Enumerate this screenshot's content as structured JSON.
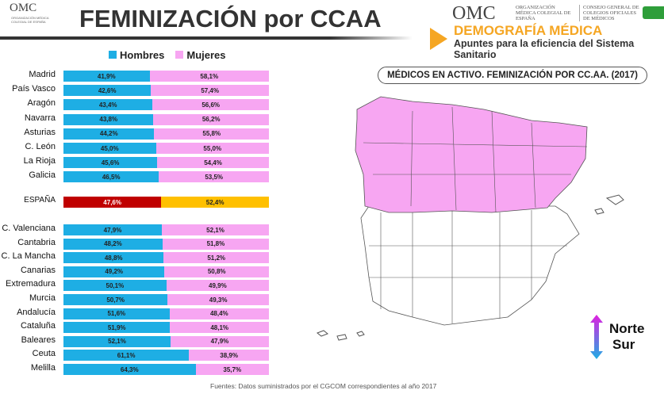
{
  "header": {
    "title": "FEMINIZACIÓN por CCAA",
    "omc": "OMC",
    "org": "ORGANIZACIÓN MÉDICA COLEGIAL DE ESPAÑA",
    "consejo": "CONSEJO GENERAL DE COLEGIOS OFICIALES DE MÉDICOS",
    "demografia": "DEMOGRAFÍA MÉDICA",
    "subtitle": "Apuntes para la eficiencia del Sistema Sanitario"
  },
  "map": {
    "title": "MÉDICOS EN ACTIVO. FEMINIZACIÓN POR CC.AA. (2017)",
    "norte": "Norte",
    "sur": "Sur"
  },
  "source": "Fuentes: Datos suministrados por el CGCOM correspondientes al año 2017",
  "colors": {
    "hombres": "#1eaee4",
    "mujeres": "#f7a6f2",
    "espana_h": "#c00000",
    "espana_m": "#ffc000"
  },
  "chart_data": {
    "type": "bar",
    "stacked": true,
    "orientation": "horizontal",
    "xlim": [
      0,
      100
    ],
    "legend": [
      "Hombres",
      "Mujeres"
    ],
    "legend_position": "top",
    "categories": [
      "Madrid",
      "País Vasco",
      "Aragón",
      "Navarra",
      "Asturias",
      "C. León",
      "La Rioja",
      "Galicia",
      "ESPAÑA",
      "C. Valenciana",
      "Cantabria",
      "C. La Mancha",
      "Canarias",
      "Extremadura",
      "Murcia",
      "Andalucía",
      "Cataluña",
      "Baleares",
      "Ceuta",
      "Melilla"
    ],
    "series": [
      {
        "name": "Hombres",
        "values": [
          41.9,
          42.6,
          43.4,
          43.8,
          44.2,
          45.0,
          45.6,
          46.5,
          47.6,
          47.9,
          48.2,
          48.8,
          49.2,
          50.1,
          50.7,
          51.6,
          51.9,
          52.1,
          61.1,
          64.3
        ]
      },
      {
        "name": "Mujeres",
        "values": [
          58.1,
          57.4,
          56.6,
          56.2,
          55.8,
          55.0,
          54.4,
          53.5,
          52.4,
          52.1,
          51.8,
          51.2,
          50.8,
          49.9,
          49.3,
          48.4,
          48.1,
          47.9,
          38.9,
          35.7
        ]
      }
    ]
  }
}
